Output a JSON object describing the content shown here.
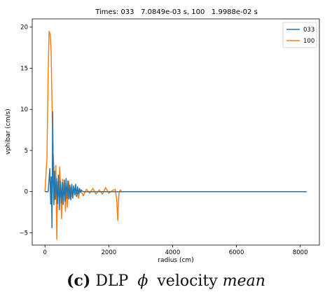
{
  "chart_data": {
    "type": "line",
    "title": "Times: 033   7.0849e-03 s, 100   1.9988e-02 s",
    "xlabel": "radius (cm)",
    "ylabel": "vphibar (cm/s)",
    "xlim": [
      -400,
      8600
    ],
    "ylim": [
      -6.5,
      21.0
    ],
    "xticks": [
      0,
      2000,
      4000,
      6000,
      8000
    ],
    "xtick_labels": [
      "0",
      "2000",
      "4000",
      "6000",
      "8000"
    ],
    "yticks": [
      -5,
      0,
      5,
      10,
      15,
      20
    ],
    "ytick_labels": [
      "−5",
      "0",
      "5",
      "10",
      "15",
      "20"
    ],
    "grid": false,
    "legend_position": "top-right",
    "series": [
      {
        "name": "033",
        "color": "#1f77b4",
        "x": [
          0,
          100,
          150,
          180,
          200,
          220,
          240,
          260,
          280,
          300,
          330,
          360,
          390,
          420,
          450,
          480,
          510,
          540,
          570,
          600,
          630,
          660,
          690,
          720,
          750,
          780,
          810,
          840,
          870,
          900,
          930,
          960,
          990,
          1020,
          1050,
          1080,
          1110,
          1140,
          1170,
          1200,
          1300,
          1500,
          2000,
          3000,
          5000,
          8200
        ],
        "y": [
          0,
          0,
          2.8,
          -1.5,
          1.8,
          -4.4,
          9.7,
          1.2,
          -1.6,
          2.5,
          -0.9,
          1.6,
          -1.5,
          2.0,
          -2.2,
          1.3,
          -1.4,
          1.1,
          -1.6,
          1.4,
          -1.2,
          1.6,
          -0.8,
          1.3,
          -0.9,
          0.8,
          -1.0,
          0.9,
          -0.8,
          0.7,
          -0.4,
          0.9,
          -0.6,
          0.6,
          -0.3,
          0.4,
          -0.1,
          0.2,
          0.05,
          0,
          0,
          0,
          0,
          0,
          0,
          0
        ]
      },
      {
        "name": "100",
        "color": "#ff7f0e",
        "x": [
          0,
          60,
          100,
          130,
          160,
          190,
          220,
          250,
          280,
          310,
          340,
          370,
          400,
          430,
          460,
          490,
          520,
          550,
          580,
          610,
          640,
          670,
          700,
          740,
          780,
          820,
          860,
          900,
          950,
          1000,
          1050,
          1100,
          1200,
          1300,
          1400,
          1500,
          1600,
          1700,
          1800,
          1900,
          2000,
          2100,
          2200,
          2250,
          2280,
          2300,
          2320,
          2360,
          2400,
          2500,
          3000,
          5000,
          8200
        ],
        "y": [
          0,
          4,
          14.5,
          19.5,
          19.2,
          17.5,
          11.0,
          5.0,
          2.9,
          -1.0,
          3.2,
          -5.8,
          1.2,
          -0.6,
          3.0,
          0.5,
          -3.3,
          1.5,
          -1.0,
          1.4,
          -2.4,
          0.8,
          -1.9,
          1.3,
          -0.8,
          0.5,
          -0.7,
          0.6,
          -0.3,
          0.1,
          -0.8,
          0.3,
          -0.5,
          0.3,
          -0.2,
          0.4,
          -0.3,
          0.2,
          -0.3,
          0.5,
          -0.2,
          0.1,
          0.3,
          -1.0,
          -3.5,
          -1.5,
          -0.2,
          0.2,
          0,
          0,
          0,
          0,
          0
        ]
      }
    ]
  },
  "caption": {
    "label": "(c)",
    "text1": "DLP",
    "symbol": "ϕ",
    "text2": "velocity",
    "emphasis": "mean"
  }
}
